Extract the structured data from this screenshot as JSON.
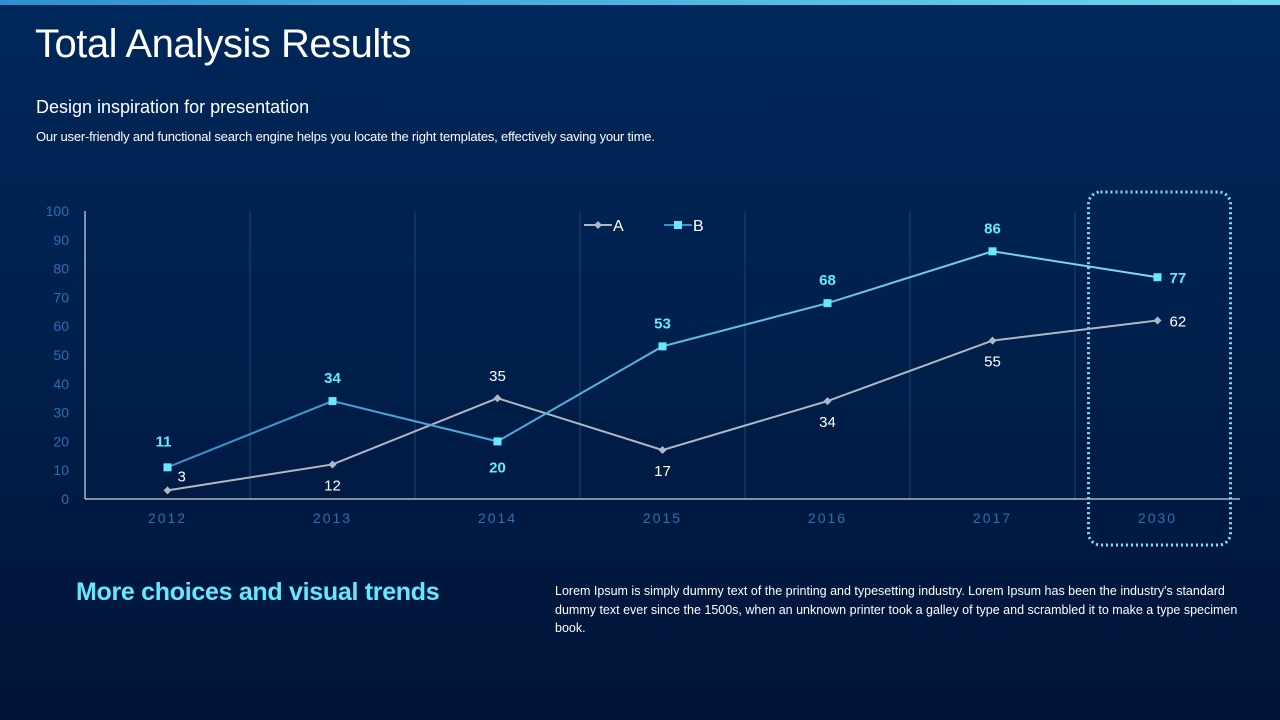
{
  "slide": {
    "title": "Total Analysis Results",
    "subtitle": "Design inspiration for presentation",
    "description": "Our user-friendly and functional search engine helps you locate the right templates, effectively saving your time."
  },
  "bottom": {
    "heading": "More choices and visual trends",
    "body": "Lorem Ipsum is simply dummy text of the printing and typesetting industry. Lorem Ipsum has been the industry's standard dummy text ever since the 1500s, when an unknown printer took a galley of type and scrambled it to make a type specimen book."
  },
  "colors": {
    "accent": "#66e8ff",
    "series_a": "#b0b8c4",
    "series_b_line_start": "#3b8fd0",
    "series_b_line_end": "#7fdcf5",
    "axis_labels": "#2e6fb3",
    "highlight_box": "#7fe4f8"
  },
  "chart_data": {
    "type": "line",
    "title": "",
    "xlabel": "",
    "ylabel": "",
    "categories": [
      "2012",
      "2013",
      "2014",
      "2015",
      "2016",
      "2017",
      "2030"
    ],
    "series": [
      {
        "name": "A",
        "values": [
          3,
          12,
          35,
          17,
          34,
          55,
          62
        ],
        "marker": "diamond"
      },
      {
        "name": "B",
        "values": [
          11,
          34,
          20,
          53,
          68,
          86,
          77
        ],
        "marker": "square"
      }
    ],
    "ylim": [
      0,
      100
    ],
    "yticks": [
      "0",
      "10",
      "20",
      "30",
      "40",
      "50",
      "60",
      "70",
      "80",
      "90",
      "100"
    ],
    "grid": "vertical",
    "legend": "top",
    "highlight_category": "2030"
  }
}
